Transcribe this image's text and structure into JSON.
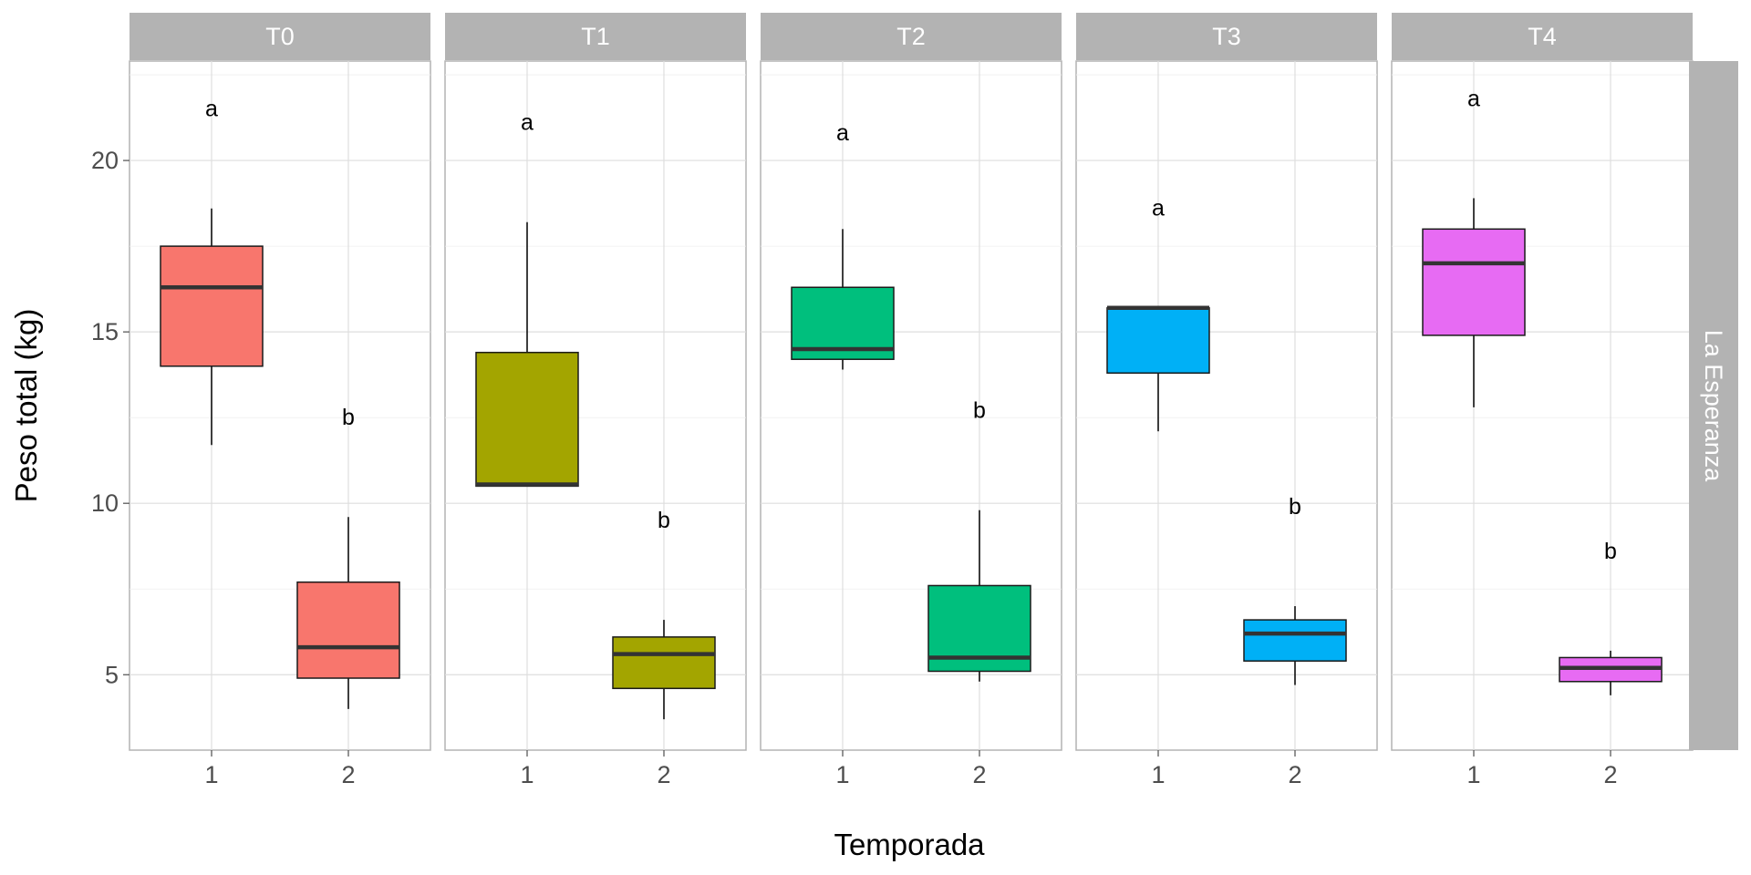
{
  "chart_data": {
    "type": "boxplot",
    "xlabel": "Temporada",
    "ylabel": "Peso total (kg)",
    "row_strip": "La Esperanza",
    "categories": [
      "1",
      "2"
    ],
    "ylim": [
      2.8,
      22.9
    ],
    "y_ticks": [
      5,
      10,
      15,
      20
    ],
    "grid": true,
    "panels": [
      {
        "name": "T0",
        "color": "#F8766D",
        "boxes": [
          {
            "x": "1",
            "min": 11.7,
            "q1": 14.0,
            "median": 16.3,
            "q3": 17.5,
            "max": 18.6,
            "label": "a",
            "label_y": 21.5
          },
          {
            "x": "2",
            "min": 4.0,
            "q1": 4.9,
            "median": 5.8,
            "q3": 7.7,
            "max": 9.6,
            "label": "b",
            "label_y": 12.5
          }
        ]
      },
      {
        "name": "T1",
        "color": "#A3A500",
        "boxes": [
          {
            "x": "1",
            "min": 10.5,
            "q1": 10.5,
            "median": 10.55,
            "q3": 14.4,
            "max": 18.2,
            "label": "a",
            "label_y": 21.1
          },
          {
            "x": "2",
            "min": 3.7,
            "q1": 4.6,
            "median": 5.6,
            "q3": 6.1,
            "max": 6.6,
            "label": "b",
            "label_y": 9.5
          }
        ]
      },
      {
        "name": "T2",
        "color": "#00BF7D",
        "boxes": [
          {
            "x": "1",
            "min": 13.9,
            "q1": 14.2,
            "median": 14.5,
            "q3": 16.3,
            "max": 18.0,
            "label": "a",
            "label_y": 20.8
          },
          {
            "x": "2",
            "min": 4.8,
            "q1": 5.1,
            "median": 5.5,
            "q3": 7.6,
            "max": 9.8,
            "label": "b",
            "label_y": 12.7
          }
        ]
      },
      {
        "name": "T3",
        "color": "#00B0F6",
        "boxes": [
          {
            "x": "1",
            "min": 12.1,
            "q1": 13.8,
            "median": 15.7,
            "q3": 15.7,
            "max": 15.7,
            "label": "a",
            "label_y": 18.6
          },
          {
            "x": "2",
            "min": 4.7,
            "q1": 5.4,
            "median": 6.2,
            "q3": 6.6,
            "max": 7.0,
            "label": "b",
            "label_y": 9.9
          }
        ]
      },
      {
        "name": "T4",
        "color": "#E76BF3",
        "boxes": [
          {
            "x": "1",
            "min": 12.8,
            "q1": 14.9,
            "median": 17.0,
            "q3": 18.0,
            "max": 18.9,
            "label": "a",
            "label_y": 21.8
          },
          {
            "x": "2",
            "min": 4.4,
            "q1": 4.8,
            "median": 5.2,
            "q3": 5.5,
            "max": 5.7,
            "label": "b",
            "label_y": 8.6
          }
        ]
      }
    ]
  }
}
